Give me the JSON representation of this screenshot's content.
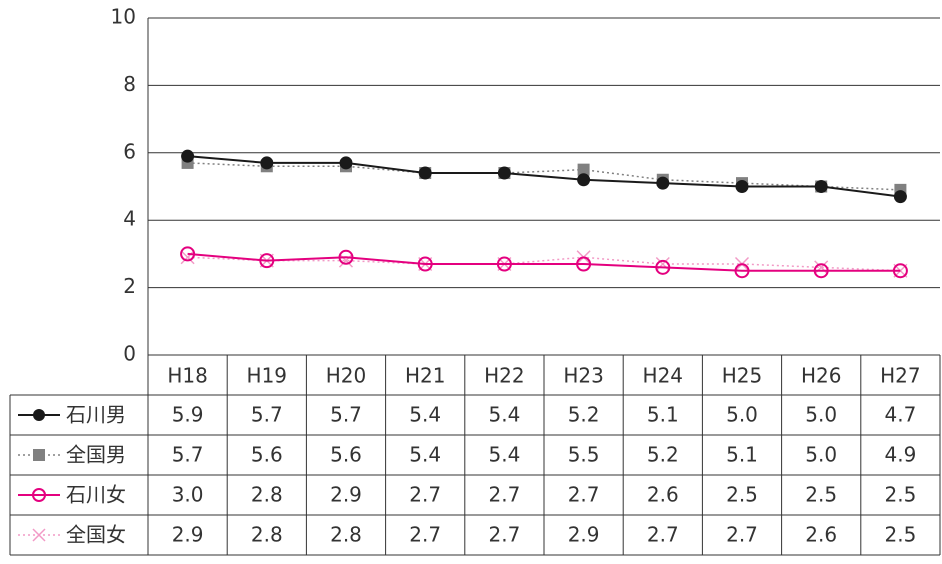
{
  "chart_data": {
    "type": "line",
    "categories": [
      "H18",
      "H19",
      "H20",
      "H21",
      "H22",
      "H23",
      "H24",
      "H25",
      "H26",
      "H27"
    ],
    "ylim": [
      0,
      10
    ],
    "yticks": [
      0,
      2,
      4,
      6,
      8,
      10
    ],
    "grid": true,
    "series": [
      {
        "name": "石川男",
        "color": "#1a1a1a",
        "dash": "none",
        "marker": "filled-circle",
        "values": [
          5.9,
          5.7,
          5.7,
          5.4,
          5.4,
          5.2,
          5.1,
          5.0,
          5.0,
          4.7
        ],
        "value_labels": [
          "5.9",
          "5.7",
          "5.7",
          "5.4",
          "5.4",
          "5.2",
          "5.1",
          "5.0",
          "5.0",
          "4.7"
        ]
      },
      {
        "name": "全国男",
        "color": "#808080",
        "dash": "dotted",
        "marker": "square",
        "values": [
          5.7,
          5.6,
          5.6,
          5.4,
          5.4,
          5.5,
          5.2,
          5.1,
          5.0,
          4.9
        ],
        "value_labels": [
          "5.7",
          "5.6",
          "5.6",
          "5.4",
          "5.4",
          "5.5",
          "5.2",
          "5.1",
          "5.0",
          "4.9"
        ]
      },
      {
        "name": "石川女",
        "color": "#e4007f",
        "dash": "none",
        "marker": "open-circle",
        "values": [
          3.0,
          2.8,
          2.9,
          2.7,
          2.7,
          2.7,
          2.6,
          2.5,
          2.5,
          2.5
        ],
        "value_labels": [
          "3.0",
          "2.8",
          "2.9",
          "2.7",
          "2.7",
          "2.7",
          "2.6",
          "2.5",
          "2.5",
          "2.5"
        ]
      },
      {
        "name": "全国女",
        "color": "#f29ac6",
        "dash": "dotted",
        "marker": "x",
        "values": [
          2.9,
          2.8,
          2.8,
          2.7,
          2.7,
          2.9,
          2.7,
          2.7,
          2.6,
          2.5
        ],
        "value_labels": [
          "2.9",
          "2.8",
          "2.8",
          "2.7",
          "2.7",
          "2.9",
          "2.7",
          "2.7",
          "2.6",
          "2.5"
        ]
      }
    ]
  }
}
